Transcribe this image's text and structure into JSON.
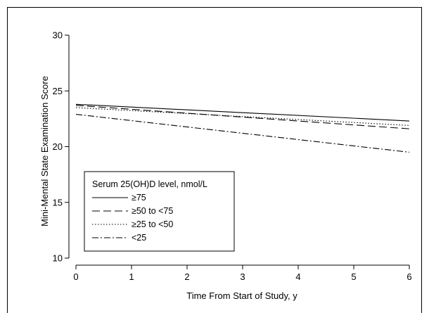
{
  "chart_data": {
    "type": "line",
    "xlabel": "Time From Start of Study, y",
    "ylabel": "Mini-Mental State Examination Score",
    "xlim": [
      0,
      6
    ],
    "ylim": [
      10,
      30
    ],
    "xticks": [
      0,
      1,
      2,
      3,
      4,
      5,
      6
    ],
    "yticks": [
      10,
      15,
      20,
      25,
      30
    ],
    "grid": false,
    "legend": {
      "title": "Serum 25(OH)D level, nmol/L",
      "placement": "bottom-left"
    },
    "series": [
      {
        "name": "≥75",
        "style": "solid",
        "x": [
          0,
          6
        ],
        "y": [
          23.8,
          22.3
        ]
      },
      {
        "name": "≥50 to <75",
        "style": "dashed",
        "x": [
          0,
          6
        ],
        "y": [
          23.7,
          21.6
        ]
      },
      {
        "name": "≥25 to <50",
        "style": "dotted",
        "x": [
          0,
          6
        ],
        "y": [
          23.5,
          21.9
        ]
      },
      {
        "name": "<25",
        "style": "dashdot",
        "x": [
          0,
          6
        ],
        "y": [
          22.9,
          19.5
        ]
      }
    ]
  }
}
